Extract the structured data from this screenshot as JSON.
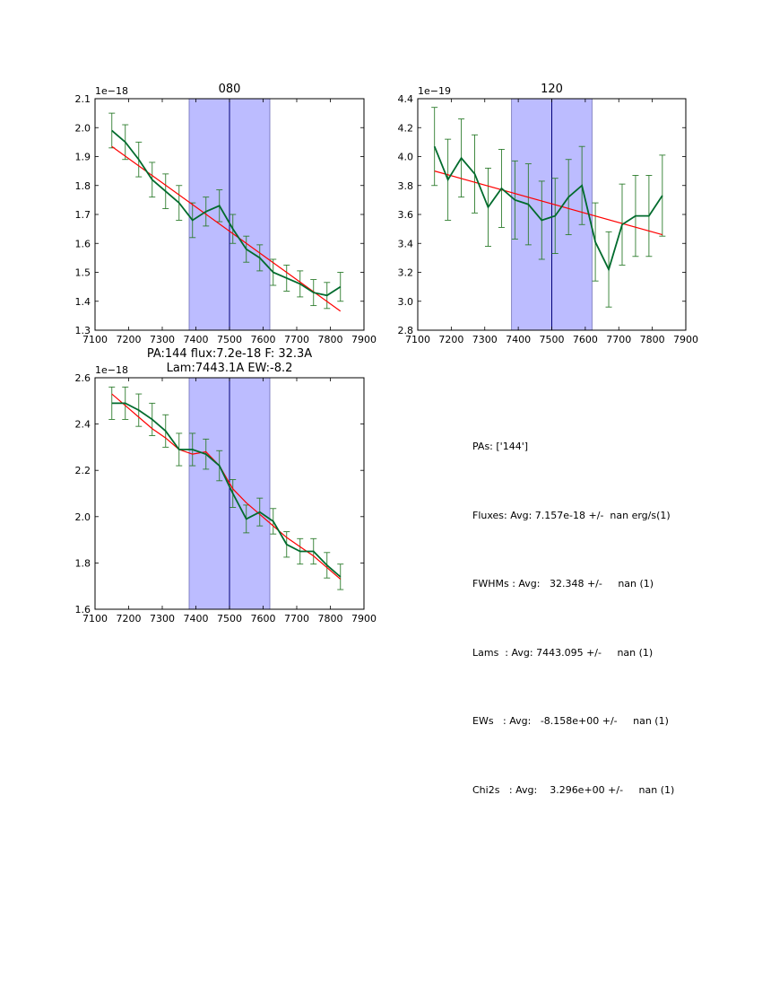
{
  "chart_data": [
    {
      "type": "line",
      "title": "080",
      "offset_label": "1e−18",
      "xlim": [
        7100,
        7900
      ],
      "ylim": [
        1.3,
        2.1
      ],
      "xticks": [
        7100,
        7200,
        7300,
        7400,
        7500,
        7600,
        7700,
        7800,
        7900
      ],
      "xtick_labels": [
        "7100",
        "7200",
        "7300",
        "7400",
        "7500",
        "7600",
        "7700",
        "7800",
        "7900"
      ],
      "yticks": [
        1.3,
        1.4,
        1.5,
        1.6,
        1.7,
        1.8,
        1.9,
        2.0,
        2.1
      ],
      "ytick_labels": [
        "1.3",
        "1.4",
        "1.5",
        "1.6",
        "1.7",
        "1.8",
        "1.9",
        "2.0",
        "2.1"
      ],
      "band": [
        7380,
        7620
      ],
      "vline": 7500,
      "x": [
        7150,
        7190,
        7230,
        7270,
        7310,
        7350,
        7390,
        7430,
        7470,
        7510,
        7550,
        7590,
        7630,
        7670,
        7710,
        7750,
        7790,
        7830
      ],
      "y": [
        1.99,
        1.95,
        1.89,
        1.82,
        1.78,
        1.74,
        1.68,
        1.71,
        1.73,
        1.65,
        1.58,
        1.55,
        1.5,
        1.48,
        1.46,
        1.43,
        1.42,
        1.45
      ],
      "yerr": [
        0.06,
        0.06,
        0.06,
        0.06,
        0.06,
        0.06,
        0.06,
        0.05,
        0.055,
        0.05,
        0.045,
        0.045,
        0.045,
        0.045,
        0.045,
        0.045,
        0.045,
        0.05
      ],
      "fit": {
        "x": [
          7150,
          7830
        ],
        "y": [
          1.935,
          1.366
        ]
      }
    },
    {
      "type": "line",
      "title": "120",
      "offset_label": "1e−19",
      "xlim": [
        7100,
        7900
      ],
      "ylim": [
        2.8,
        4.4
      ],
      "xticks": [
        7100,
        7200,
        7300,
        7400,
        7500,
        7600,
        7700,
        7800,
        7900
      ],
      "xtick_labels": [
        "7100",
        "7200",
        "7300",
        "7400",
        "7500",
        "7600",
        "7700",
        "7800",
        "7900"
      ],
      "yticks": [
        2.8,
        3.0,
        3.2,
        3.4,
        3.6,
        3.8,
        4.0,
        4.2,
        4.4
      ],
      "ytick_labels": [
        "2.8",
        "3.0",
        "3.2",
        "3.4",
        "3.6",
        "3.8",
        "4.0",
        "4.2",
        "4.4"
      ],
      "band": [
        7380,
        7620
      ],
      "vline": 7500,
      "x": [
        7150,
        7190,
        7230,
        7270,
        7310,
        7350,
        7390,
        7430,
        7470,
        7510,
        7550,
        7590,
        7630,
        7670,
        7710,
        7750,
        7790,
        7830
      ],
      "y": [
        4.07,
        3.84,
        3.99,
        3.88,
        3.65,
        3.78,
        3.7,
        3.67,
        3.56,
        3.59,
        3.72,
        3.8,
        3.41,
        3.22,
        3.53,
        3.59,
        3.59,
        3.73
      ],
      "yerr": [
        0.27,
        0.28,
        0.27,
        0.27,
        0.27,
        0.27,
        0.27,
        0.28,
        0.27,
        0.26,
        0.26,
        0.27,
        0.27,
        0.26,
        0.28,
        0.28,
        0.28,
        0.28
      ],
      "fit": {
        "x": [
          7150,
          7830
        ],
        "y": [
          3.9,
          3.46
        ]
      }
    },
    {
      "type": "line",
      "title": "PA:144 flux:7.2e-18 F: 32.3A\nLam:7443.1A EW:-8.2",
      "offset_label": "1e−18",
      "xlim": [
        7100,
        7900
      ],
      "ylim": [
        1.6,
        2.6
      ],
      "xticks": [
        7100,
        7200,
        7300,
        7400,
        7500,
        7600,
        7700,
        7800,
        7900
      ],
      "xtick_labels": [
        "7100",
        "7200",
        "7300",
        "7400",
        "7500",
        "7600",
        "7700",
        "7800",
        "7900"
      ],
      "yticks": [
        1.6,
        1.8,
        2.0,
        2.2,
        2.4,
        2.6
      ],
      "ytick_labels": [
        "1.6",
        "1.8",
        "2.0",
        "2.2",
        "2.4",
        "2.6"
      ],
      "band": [
        7380,
        7620
      ],
      "vline": 7500,
      "x": [
        7150,
        7190,
        7230,
        7270,
        7310,
        7350,
        7390,
        7430,
        7470,
        7510,
        7550,
        7590,
        7630,
        7670,
        7710,
        7750,
        7790,
        7830
      ],
      "y": [
        2.49,
        2.49,
        2.46,
        2.42,
        2.37,
        2.29,
        2.29,
        2.27,
        2.22,
        2.1,
        1.99,
        2.02,
        1.98,
        1.88,
        1.85,
        1.85,
        1.79,
        1.74
      ],
      "yerr": [
        0.07,
        0.07,
        0.07,
        0.07,
        0.07,
        0.07,
        0.07,
        0.065,
        0.065,
        0.06,
        0.06,
        0.06,
        0.055,
        0.055,
        0.055,
        0.055,
        0.055,
        0.055
      ],
      "fit": {
        "x": [
          7150,
          7190,
          7230,
          7270,
          7310,
          7350,
          7390,
          7430,
          7470,
          7510,
          7550,
          7590,
          7630,
          7670,
          7710,
          7750,
          7790,
          7830
        ],
        "y": [
          2.53,
          2.48,
          2.43,
          2.38,
          2.34,
          2.29,
          2.27,
          2.28,
          2.22,
          2.12,
          2.06,
          2.01,
          1.96,
          1.91,
          1.87,
          1.83,
          1.78,
          1.73
        ]
      }
    }
  ],
  "colors": {
    "data": "#006b2d",
    "error": "#2e7d2e",
    "fit": "#ff0000",
    "band": "#bcbcff",
    "band_edge": "#6b6bb8",
    "vline": "#00007a"
  },
  "info": {
    "pas": "PAs: ['144']",
    "fluxes": "Fluxes: Avg: 7.157e-18 +/-  nan erg/s(1)",
    "fwhms": "FWHMs : Avg:   32.348 +/-     nan (1)",
    "lams": "Lams  : Avg: 7443.095 +/-     nan (1)",
    "ews": "EWs   : Avg:   -8.158e+00 +/-     nan (1)",
    "chi2s": "Chi2s   : Avg:    3.296e+00 +/-     nan (1)"
  }
}
